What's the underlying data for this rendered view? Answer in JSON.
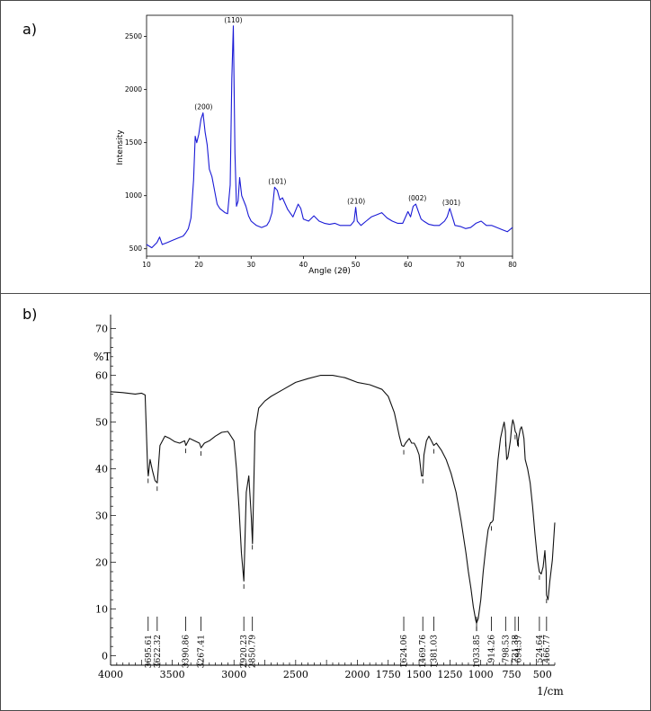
{
  "chart_data": [
    {
      "panel_label": "a)",
      "type": "line",
      "xlabel": "Angle (2θ)",
      "ylabel": "Intensity",
      "xlim": [
        10,
        80
      ],
      "ylim": [
        430,
        2700
      ],
      "xticks": [
        "10",
        "20",
        "30",
        "40",
        "50",
        "60",
        "70",
        "80"
      ],
      "yticks": [
        "500",
        "1000",
        "1500",
        "2000",
        "2500"
      ],
      "grid": false,
      "line_color": "#1a1ad6",
      "series": [
        {
          "x": [
            10,
            11,
            12,
            12.5,
            13,
            14,
            15,
            16,
            17,
            17.5,
            18,
            18.5,
            19,
            19.3,
            19.6,
            20,
            20.4,
            20.8,
            21.2,
            21.6,
            22,
            22.5,
            23,
            23.5,
            24,
            25,
            25.5,
            26,
            26.3,
            26.6,
            26.9,
            27.2,
            27.5,
            27.8,
            28.2,
            29,
            29.5,
            30,
            31,
            32,
            33,
            33.5,
            34,
            34.5,
            35,
            35.5,
            36,
            37,
            38,
            39,
            39.5,
            40,
            41,
            42,
            43,
            44,
            45,
            46,
            47,
            48,
            49,
            49.7,
            50,
            50.3,
            51,
            52,
            53,
            54,
            55,
            56,
            57,
            58,
            59,
            60,
            60.5,
            61,
            61.5,
            62,
            62.5,
            63,
            64,
            65,
            66,
            67,
            67.5,
            68,
            68.5,
            69,
            70,
            71,
            72,
            73,
            74,
            75,
            76,
            77,
            78,
            79,
            80
          ],
          "y": [
            540,
            510,
            560,
            610,
            540,
            560,
            580,
            600,
            620,
            650,
            690,
            790,
            1150,
            1560,
            1500,
            1580,
            1720,
            1780,
            1600,
            1480,
            1250,
            1180,
            1050,
            920,
            880,
            840,
            830,
            1100,
            2100,
            2600,
            1400,
            900,
            950,
            1170,
            1000,
            900,
            810,
            760,
            720,
            700,
            720,
            760,
            840,
            1080,
            1050,
            960,
            980,
            870,
            800,
            920,
            880,
            780,
            760,
            810,
            760,
            740,
            730,
            740,
            720,
            720,
            720,
            760,
            890,
            760,
            720,
            760,
            800,
            820,
            840,
            790,
            760,
            740,
            740,
            850,
            800,
            900,
            920,
            850,
            780,
            760,
            730,
            720,
            720,
            760,
            800,
            880,
            800,
            720,
            710,
            690,
            700,
            740,
            760,
            720,
            720,
            700,
            680,
            660,
            700
          ]
        }
      ],
      "peak_labels": [
        {
          "label": "(200)",
          "x": 20.9,
          "y": 1780
        },
        {
          "label": "(110)",
          "x": 26.6,
          "y": 2600
        },
        {
          "label": "(101)",
          "x": 35.0,
          "y": 1080
        },
        {
          "label": "(210)",
          "x": 50.1,
          "y": 890
        },
        {
          "label": "(002)",
          "x": 61.8,
          "y": 920
        },
        {
          "label": "(301)",
          "x": 68.3,
          "y": 880
        }
      ]
    },
    {
      "panel_label": "b)",
      "type": "line",
      "xlabel": "1/cm",
      "ylabel": "%T",
      "xlim": [
        4000,
        400
      ],
      "ylim": [
        -2,
        73
      ],
      "xticks": [
        "4000",
        "3500",
        "3000",
        "2500",
        "2000",
        "1750",
        "1500",
        "1250",
        "1000",
        "750",
        "500"
      ],
      "yticks": [
        "0",
        "10",
        "20",
        "30",
        "40",
        "50",
        "60",
        "70"
      ],
      "grid": false,
      "line_color": "#111111",
      "series": [
        {
          "x": [
            4000,
            3900,
            3800,
            3750,
            3720,
            3700,
            3695,
            3680,
            3660,
            3640,
            3622,
            3600,
            3560,
            3520,
            3480,
            3440,
            3400,
            3390,
            3360,
            3320,
            3280,
            3267,
            3240,
            3200,
            3150,
            3100,
            3050,
            3000,
            2980,
            2960,
            2940,
            2920,
            2900,
            2880,
            2860,
            2850,
            2830,
            2800,
            2750,
            2700,
            2600,
            2500,
            2400,
            2300,
            2200,
            2100,
            2000,
            1900,
            1800,
            1750,
            1700,
            1680,
            1660,
            1640,
            1624,
            1610,
            1580,
            1560,
            1540,
            1520,
            1500,
            1480,
            1470,
            1460,
            1440,
            1420,
            1400,
            1381,
            1360,
            1320,
            1280,
            1240,
            1200,
            1160,
            1120,
            1100,
            1080,
            1060,
            1040,
            1034,
            1020,
            1000,
            980,
            960,
            940,
            920,
            914,
            900,
            880,
            860,
            840,
            820,
            810,
            800,
            798,
            790,
            780,
            760,
            750,
            740,
            730,
            721,
            710,
            700,
            694,
            680,
            670,
            660,
            650,
            640,
            620,
            600,
            580,
            560,
            540,
            525,
            510,
            495,
            480,
            470,
            467,
            455,
            440,
            420,
            400
          ],
          "y": [
            56.5,
            56.3,
            56.0,
            56.2,
            55.8,
            40.0,
            38.5,
            42.0,
            39.5,
            37.5,
            37.0,
            45.0,
            47.0,
            46.5,
            45.8,
            45.5,
            46.0,
            45.0,
            46.5,
            46.0,
            45.5,
            44.5,
            45.5,
            46.0,
            47.0,
            47.8,
            48.0,
            46.0,
            40.0,
            32.0,
            22.0,
            16.0,
            35.0,
            38.5,
            30.0,
            24.0,
            48.0,
            53.0,
            54.5,
            55.5,
            57.0,
            58.5,
            59.3,
            60.0,
            60.0,
            59.5,
            58.5,
            58.0,
            57.0,
            55.5,
            52.0,
            49.5,
            47.0,
            45.0,
            44.8,
            45.5,
            46.5,
            45.5,
            45.5,
            44.5,
            43.0,
            38.5,
            38.5,
            43.0,
            46.0,
            47.0,
            46.0,
            45.0,
            45.5,
            44.0,
            42.0,
            39.0,
            35.0,
            29.0,
            22.0,
            18.0,
            14.5,
            10.5,
            7.5,
            7.0,
            8.0,
            12.0,
            18.0,
            23.0,
            27.0,
            28.5,
            28.5,
            29.0,
            35.0,
            42.0,
            46.5,
            49.0,
            50.0,
            48.0,
            46.0,
            42.0,
            42.5,
            46.0,
            49.0,
            50.5,
            49.5,
            48.0,
            47.5,
            45.0,
            46.5,
            48.5,
            49.0,
            48.0,
            46.5,
            42.0,
            40.0,
            37.0,
            32.0,
            26.0,
            20.5,
            18.0,
            17.5,
            19.0,
            22.5,
            18.0,
            13.0,
            12.0,
            16.0,
            20.5,
            28.5
          ]
        }
      ],
      "peak_labels": [
        "3695.61",
        "3622.32",
        "3390.86",
        "3267.41",
        "2920.23",
        "2850.79",
        "1624.06",
        "1469.76",
        "1381.03",
        "1033.85",
        "914.26",
        "798.53",
        "721.38",
        "694.37",
        "524.64",
        "466.77"
      ]
    }
  ]
}
